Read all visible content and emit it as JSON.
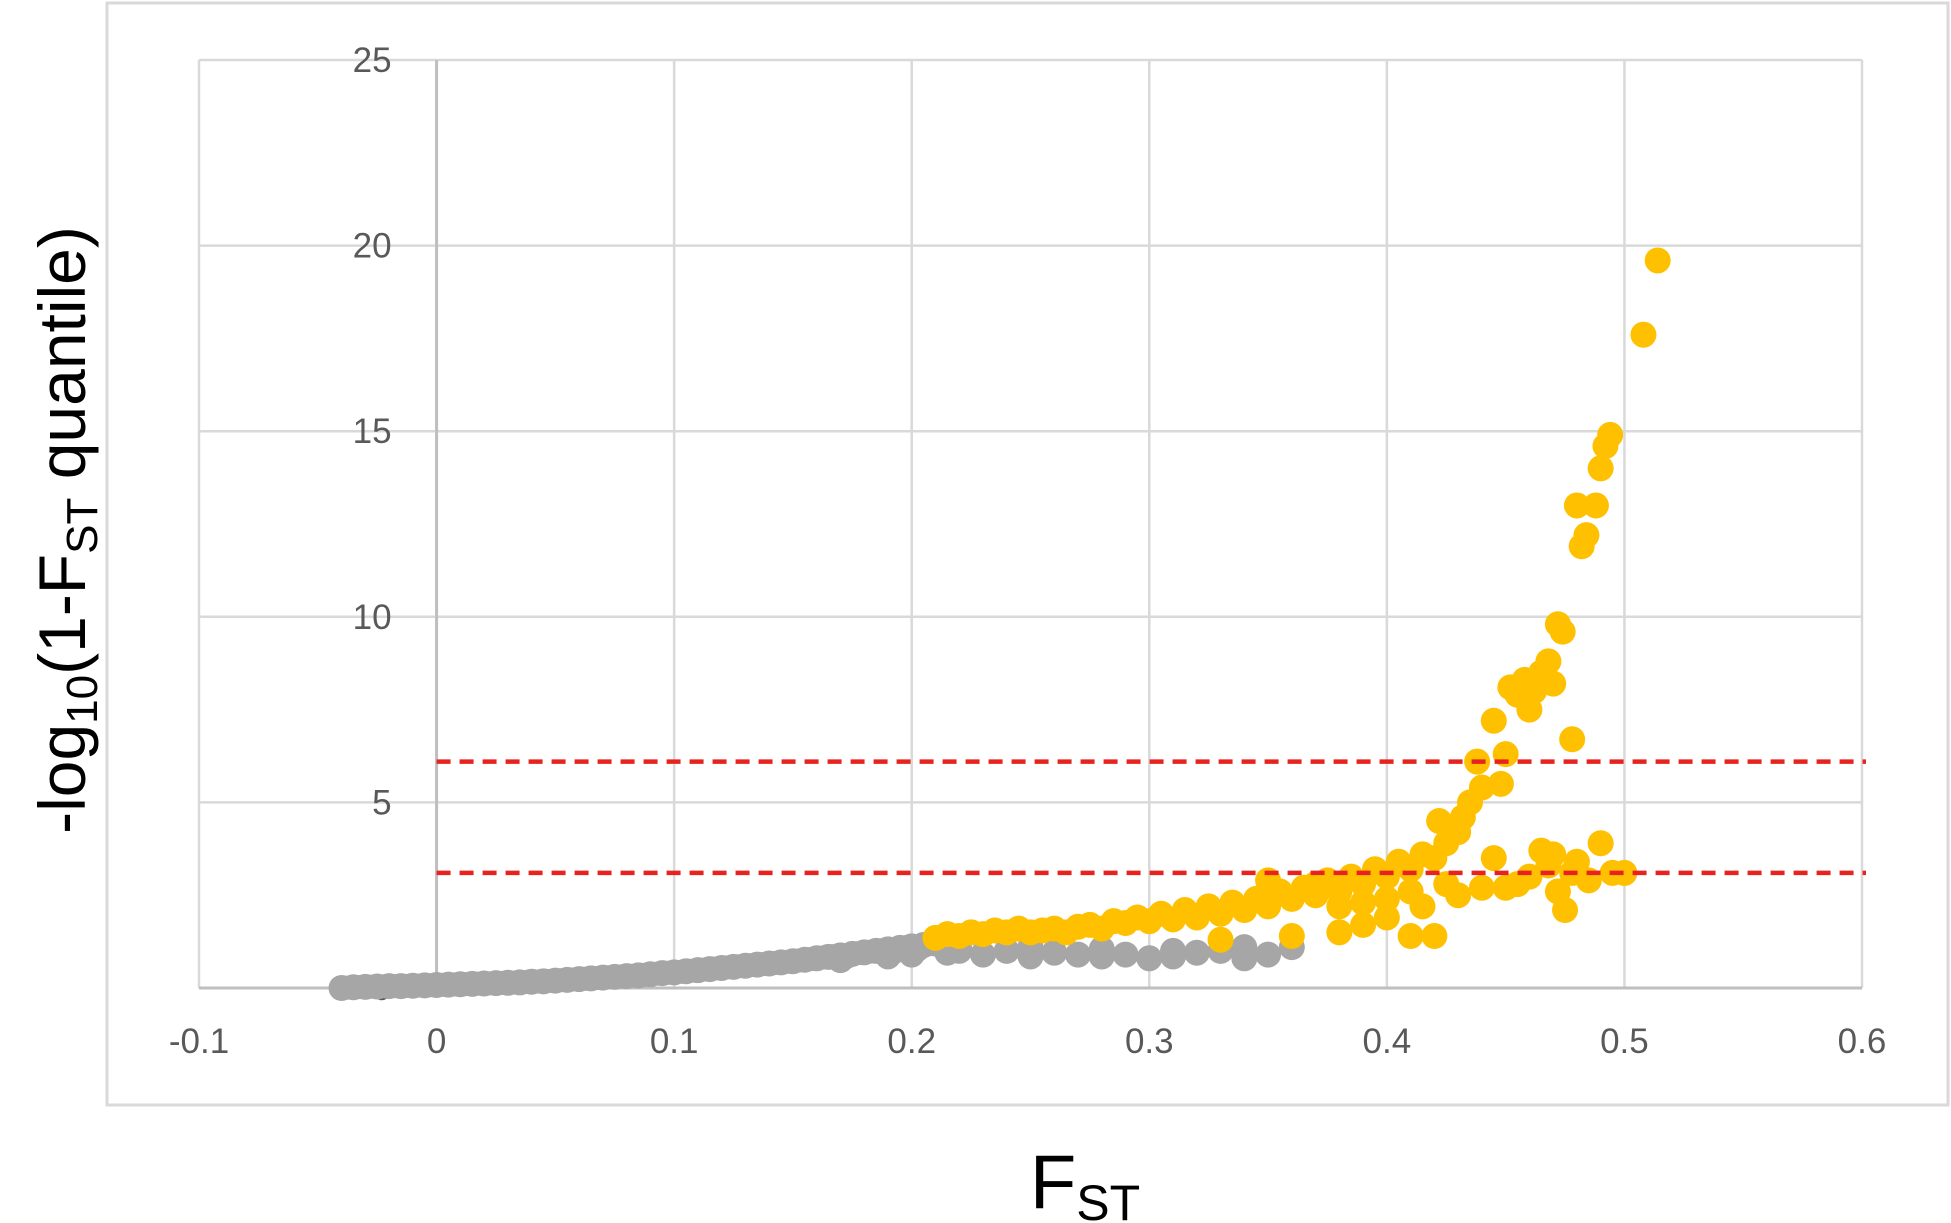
{
  "chart_data": {
    "type": "scatter",
    "title": "",
    "xlabel": {
      "main": "F",
      "sub": "ST"
    },
    "ylabel": {
      "prefix": "-log",
      "sub1": "10",
      "mid": "(1-F",
      "sub2": "ST",
      "suffix": " quantile)"
    },
    "xlim": [
      -0.1,
      0.6
    ],
    "ylim": [
      0,
      25
    ],
    "x_ticks": [
      "-0.1",
      "0",
      "0.1",
      "0.2",
      "0.3",
      "0.4",
      "0.5",
      "0.6"
    ],
    "y_ticks": [
      "0",
      "5",
      "10",
      "15",
      "20",
      "25"
    ],
    "x_tick_values": [
      -0.1,
      0,
      0.1,
      0.2,
      0.3,
      0.4,
      0.5,
      0.6
    ],
    "y_tick_values": [
      0,
      5,
      10,
      15,
      20,
      25
    ],
    "grid": true,
    "legend": "none",
    "threshold_lines": [
      {
        "y": 6.1,
        "color": "#e8231f",
        "style": "dashed"
      },
      {
        "y": 3.1,
        "color": "#e8231f",
        "style": "dashed"
      }
    ],
    "series": [
      {
        "color": "#a6a6a6",
        "points": [
          [
            -0.04,
            0.0
          ],
          [
            -0.035,
            0.02
          ],
          [
            -0.03,
            0.03
          ],
          [
            -0.025,
            0.04
          ],
          [
            -0.02,
            0.05
          ],
          [
            -0.015,
            0.05
          ],
          [
            -0.01,
            0.06
          ],
          [
            -0.005,
            0.07
          ],
          [
            0.0,
            0.08
          ],
          [
            0.005,
            0.09
          ],
          [
            0.01,
            0.1
          ],
          [
            0.015,
            0.11
          ],
          [
            0.02,
            0.12
          ],
          [
            0.025,
            0.13
          ],
          [
            0.03,
            0.14
          ],
          [
            0.035,
            0.15
          ],
          [
            0.04,
            0.17
          ],
          [
            0.045,
            0.18
          ],
          [
            0.05,
            0.2
          ],
          [
            0.055,
            0.22
          ],
          [
            0.06,
            0.24
          ],
          [
            0.065,
            0.26
          ],
          [
            0.07,
            0.28
          ],
          [
            0.075,
            0.3
          ],
          [
            0.08,
            0.32
          ],
          [
            0.085,
            0.34
          ],
          [
            0.09,
            0.37
          ],
          [
            0.095,
            0.4
          ],
          [
            0.1,
            0.42
          ],
          [
            0.105,
            0.45
          ],
          [
            0.11,
            0.48
          ],
          [
            0.115,
            0.51
          ],
          [
            0.12,
            0.54
          ],
          [
            0.125,
            0.57
          ],
          [
            0.13,
            0.6
          ],
          [
            0.135,
            0.63
          ],
          [
            0.14,
            0.66
          ],
          [
            0.145,
            0.69
          ],
          [
            0.15,
            0.72
          ],
          [
            0.155,
            0.76
          ],
          [
            0.16,
            0.8
          ],
          [
            0.165,
            0.84
          ],
          [
            0.17,
            0.88
          ],
          [
            0.175,
            0.92
          ],
          [
            0.18,
            0.96
          ],
          [
            0.185,
            1.0
          ],
          [
            0.19,
            1.04
          ],
          [
            0.195,
            1.08
          ],
          [
            0.2,
            1.12
          ],
          [
            0.205,
            1.16
          ],
          [
            0.21,
            1.2
          ],
          [
            0.215,
            0.95
          ],
          [
            0.22,
            1.0
          ],
          [
            0.23,
            0.9
          ],
          [
            0.24,
            1.0
          ],
          [
            0.25,
            0.85
          ],
          [
            0.26,
            0.95
          ],
          [
            0.27,
            0.9
          ],
          [
            0.28,
            0.85
          ],
          [
            0.29,
            0.9
          ],
          [
            0.3,
            0.8
          ],
          [
            0.31,
            0.85
          ],
          [
            0.32,
            0.95
          ],
          [
            0.33,
            1.0
          ],
          [
            0.34,
            0.8
          ],
          [
            0.35,
            0.9
          ],
          [
            0.36,
            1.1
          ],
          [
            0.22,
            1.05
          ],
          [
            0.25,
            1.1
          ],
          [
            0.28,
            1.05
          ],
          [
            0.31,
            1.0
          ],
          [
            0.34,
            1.1
          ],
          [
            0.2,
            0.9
          ],
          [
            0.19,
            0.85
          ],
          [
            0.17,
            0.75
          ]
        ]
      },
      {
        "color": "#ffc000",
        "points": [
          [
            0.21,
            1.35
          ],
          [
            0.215,
            1.45
          ],
          [
            0.22,
            1.4
          ],
          [
            0.225,
            1.5
          ],
          [
            0.23,
            1.45
          ],
          [
            0.235,
            1.55
          ],
          [
            0.24,
            1.5
          ],
          [
            0.245,
            1.6
          ],
          [
            0.25,
            1.5
          ],
          [
            0.255,
            1.55
          ],
          [
            0.26,
            1.6
          ],
          [
            0.265,
            1.5
          ],
          [
            0.27,
            1.65
          ],
          [
            0.275,
            1.7
          ],
          [
            0.28,
            1.6
          ],
          [
            0.285,
            1.8
          ],
          [
            0.29,
            1.75
          ],
          [
            0.295,
            1.9
          ],
          [
            0.3,
            1.8
          ],
          [
            0.305,
            2.0
          ],
          [
            0.31,
            1.85
          ],
          [
            0.315,
            2.1
          ],
          [
            0.32,
            1.9
          ],
          [
            0.325,
            2.2
          ],
          [
            0.33,
            2.0
          ],
          [
            0.335,
            2.3
          ],
          [
            0.34,
            2.1
          ],
          [
            0.345,
            2.4
          ],
          [
            0.35,
            2.2
          ],
          [
            0.355,
            2.6
          ],
          [
            0.36,
            2.4
          ],
          [
            0.365,
            2.7
          ],
          [
            0.37,
            2.5
          ],
          [
            0.375,
            2.9
          ],
          [
            0.38,
            2.6
          ],
          [
            0.385,
            3.0
          ],
          [
            0.39,
            2.8
          ],
          [
            0.395,
            3.2
          ],
          [
            0.4,
            3.0
          ],
          [
            0.405,
            3.4
          ],
          [
            0.41,
            3.2
          ],
          [
            0.415,
            3.6
          ],
          [
            0.42,
            3.5
          ],
          [
            0.422,
            4.5
          ],
          [
            0.425,
            3.9
          ],
          [
            0.43,
            4.2
          ],
          [
            0.432,
            4.6
          ],
          [
            0.435,
            5.0
          ],
          [
            0.438,
            6.1
          ],
          [
            0.44,
            5.4
          ],
          [
            0.445,
            7.2
          ],
          [
            0.448,
            5.5
          ],
          [
            0.45,
            6.3
          ],
          [
            0.452,
            8.1
          ],
          [
            0.455,
            7.9
          ],
          [
            0.458,
            8.3
          ],
          [
            0.46,
            7.5
          ],
          [
            0.462,
            8.0
          ],
          [
            0.465,
            8.5
          ],
          [
            0.468,
            8.8
          ],
          [
            0.47,
            8.2
          ],
          [
            0.472,
            9.8
          ],
          [
            0.474,
            9.6
          ],
          [
            0.478,
            6.7
          ],
          [
            0.48,
            13.0
          ],
          [
            0.482,
            11.9
          ],
          [
            0.484,
            12.2
          ],
          [
            0.488,
            13.0
          ],
          [
            0.49,
            14.0
          ],
          [
            0.492,
            14.6
          ],
          [
            0.494,
            14.9
          ],
          [
            0.508,
            17.6
          ],
          [
            0.514,
            19.6
          ],
          [
            0.33,
            1.3
          ],
          [
            0.36,
            1.4
          ],
          [
            0.38,
            1.5
          ],
          [
            0.39,
            1.7
          ],
          [
            0.4,
            1.9
          ],
          [
            0.41,
            1.4
          ],
          [
            0.415,
            2.2
          ],
          [
            0.42,
            1.4
          ],
          [
            0.43,
            2.5
          ],
          [
            0.44,
            2.7
          ],
          [
            0.445,
            3.5
          ],
          [
            0.45,
            2.7
          ],
          [
            0.455,
            2.8
          ],
          [
            0.46,
            3.0
          ],
          [
            0.465,
            3.7
          ],
          [
            0.468,
            3.3
          ],
          [
            0.47,
            3.6
          ],
          [
            0.472,
            2.6
          ],
          [
            0.475,
            2.1
          ],
          [
            0.478,
            3.1
          ],
          [
            0.48,
            3.4
          ],
          [
            0.485,
            2.9
          ],
          [
            0.49,
            3.9
          ],
          [
            0.495,
            3.1
          ],
          [
            0.5,
            3.1
          ],
          [
            0.35,
            2.9
          ],
          [
            0.37,
            2.8
          ],
          [
            0.38,
            2.2
          ],
          [
            0.39,
            2.3
          ],
          [
            0.4,
            2.4
          ],
          [
            0.41,
            2.6
          ],
          [
            0.425,
            2.8
          ]
        ]
      }
    ]
  }
}
